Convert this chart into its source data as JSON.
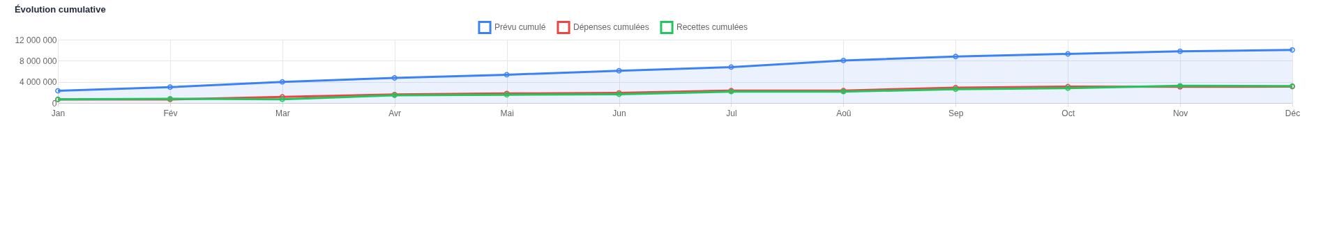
{
  "chart_data": {
    "type": "line",
    "title": "Évolution cumulative",
    "categories": [
      "Jan",
      "Fév",
      "Mar",
      "Avr",
      "Mai",
      "Jun",
      "Jul",
      "Aoû",
      "Sep",
      "Oct",
      "Nov",
      "Déc"
    ],
    "series": [
      {
        "name": "Prévu cumulé",
        "type": "area",
        "color": "#3b82f6",
        "values": [
          2300000,
          3000000,
          4000000,
          4750000,
          5350000,
          6100000,
          6800000,
          8050000,
          8800000,
          9300000,
          9800000,
          10050000
        ]
      },
      {
        "name": "Dépenses cumulées",
        "color": "#ef4444",
        "values": [
          650000,
          650000,
          1150000,
          1600000,
          1800000,
          1900000,
          2350000,
          2350000,
          2900000,
          3100000,
          3050000,
          3100000
        ]
      },
      {
        "name": "Recettes cumulées",
        "color": "#22c55e",
        "values": [
          700000,
          800000,
          700000,
          1450000,
          1550000,
          1650000,
          2150000,
          2150000,
          2600000,
          2800000,
          3250000,
          3200000
        ]
      }
    ],
    "ylim": [
      0,
      12000000
    ],
    "yticks": [
      {
        "value": 0,
        "label": "0"
      },
      {
        "value": 4000000,
        "label": "4 000 000"
      },
      {
        "value": 8000000,
        "label": "8 000 000"
      },
      {
        "value": 12000000,
        "label": "12 000 000"
      }
    ],
    "grid": true,
    "legend": "top",
    "marker": "circle",
    "line_style": "solid"
  }
}
